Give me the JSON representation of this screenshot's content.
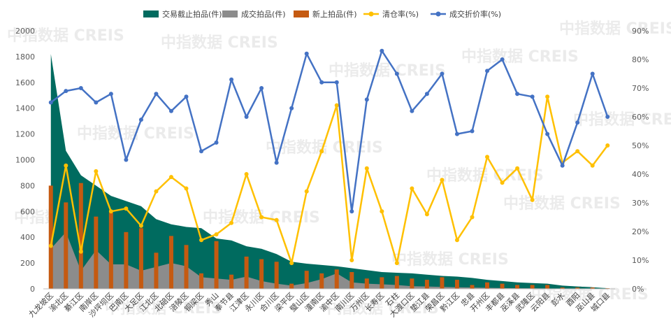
{
  "chart_data": {
    "type": "bar",
    "categories": [
      "九龙坡区",
      "渝北区",
      "綦江区",
      "南岸区",
      "沙坪坝区",
      "巴南区",
      "大足区",
      "江北区",
      "北碚区",
      "涪陵区",
      "铜梁区",
      "秀山",
      "奉节县",
      "江津区",
      "永川区",
      "合川区",
      "梁平区",
      "璧山区",
      "潼南区",
      "渝中区",
      "南川区",
      "万州区",
      "长寿区",
      "石柱",
      "大渡口区",
      "垫江县",
      "荣昌区",
      "黔江区",
      "忠县",
      "开州区",
      "丰都县",
      "巫溪县",
      "武隆区",
      "云阳县",
      "彭水",
      "酉阳",
      "巫山县",
      "城口县"
    ],
    "series": [
      {
        "name": "交易截止拍品(件)",
        "type": "area",
        "axis": "left",
        "color": "#006b5f",
        "values": [
          1820,
          1070,
          880,
          800,
          720,
          680,
          640,
          540,
          500,
          480,
          470,
          390,
          375,
          330,
          310,
          270,
          210,
          195,
          185,
          175,
          160,
          145,
          130,
          125,
          120,
          110,
          100,
          95,
          85,
          70,
          60,
          50,
          45,
          40,
          25,
          18,
          12,
          5
        ]
      },
      {
        "name": "成交拍品(件)",
        "type": "area",
        "axis": "left",
        "color": "#8c8c8c",
        "values": [
          310,
          440,
          140,
          300,
          190,
          190,
          140,
          170,
          200,
          175,
          90,
          80,
          70,
          95,
          60,
          40,
          25,
          45,
          75,
          120,
          50,
          40,
          35,
          30,
          20,
          18,
          15,
          12,
          10,
          8,
          6,
          5,
          4,
          3,
          2,
          2,
          1,
          0
        ]
      },
      {
        "name": "新上拍品(件)",
        "type": "bar",
        "axis": "left",
        "color": "#c55a11",
        "values": [
          800,
          670,
          820,
          560,
          590,
          440,
          470,
          280,
          410,
          340,
          120,
          370,
          110,
          250,
          230,
          210,
          40,
          140,
          120,
          150,
          130,
          80,
          90,
          100,
          80,
          70,
          90,
          70,
          30,
          50,
          40,
          30,
          30,
          30,
          10,
          10,
          10,
          5
        ]
      },
      {
        "name": "清仓率(%)",
        "type": "line",
        "axis": "right",
        "color": "#ffc000",
        "values": [
          15,
          43,
          13,
          41,
          27,
          28,
          22,
          34,
          39,
          35,
          17,
          19,
          23,
          40,
          25,
          24,
          9,
          34,
          48,
          64,
          10,
          42,
          27,
          9,
          35,
          26,
          38,
          17,
          25,
          46,
          37,
          42,
          31,
          67,
          44,
          48,
          43,
          50
        ]
      },
      {
        "name": "成交折价率(%)",
        "type": "line",
        "axis": "right",
        "color": "#4472c4",
        "values": [
          65,
          69,
          70,
          65,
          68,
          45,
          59,
          68,
          62,
          67,
          48,
          51,
          73,
          60,
          70,
          44,
          63,
          82,
          72,
          72,
          27,
          66,
          83,
          75,
          62,
          68,
          75,
          54,
          55,
          76,
          80,
          68,
          67,
          54,
          43,
          58,
          75,
          60
        ]
      }
    ],
    "y_left": {
      "min": 0,
      "max": 2000,
      "ticks": [
        "0",
        "200",
        "400",
        "600",
        "800",
        "1000",
        "1200",
        "1400",
        "1600",
        "1800",
        "2000"
      ]
    },
    "y_right": {
      "min": 0,
      "max": 90,
      "ticks": [
        "0%",
        "10%",
        "20%",
        "30%",
        "40%",
        "50%",
        "60%",
        "70%",
        "80%",
        "90%"
      ]
    },
    "legend_position": "top",
    "grid": false,
    "watermark": "中指数据 CREIS"
  }
}
